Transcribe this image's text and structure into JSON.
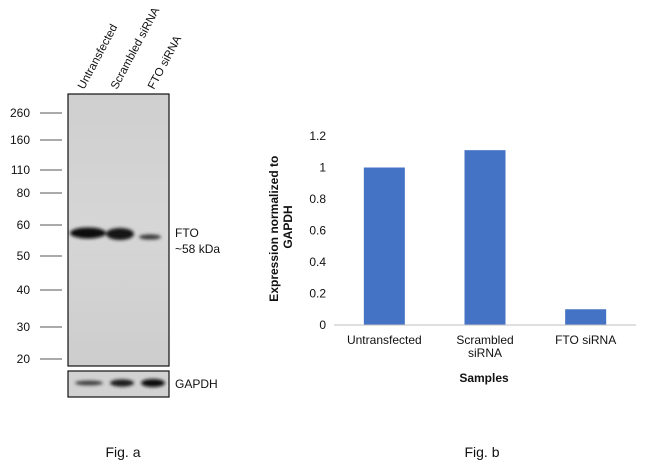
{
  "figure_a": {
    "lane_labels": [
      "Untransfected",
      "Scrambled siRNA",
      "FTO siRNA"
    ],
    "mw_markers": [
      "260",
      "160",
      "110",
      "80",
      "60",
      "50",
      "40",
      "30",
      "20"
    ],
    "band_label": "FTO",
    "band_size": "~58 kDa",
    "loading_label": "GAPDH",
    "caption": "Fig. a",
    "relative_band_intensity": [
      1.0,
      1.0,
      0.35
    ],
    "relative_gapdh_intensity": [
      0.55,
      0.8,
      0.95
    ]
  },
  "figure_b": {
    "caption": "Fig. b"
  },
  "chart_data": {
    "type": "bar",
    "categories": [
      "Untransfected",
      "Scrambled siRNA",
      "FTO siRNA"
    ],
    "values": [
      1.0,
      1.11,
      0.1
    ],
    "ylabel": "Expression normalized to GAPDH",
    "xlabel": "Samples",
    "ylim": [
      0,
      1.2
    ],
    "yticks": [
      "0",
      "0.2",
      "0.4",
      "0.6",
      "0.8",
      "1",
      "1.2"
    ],
    "bar_color": "#4472c4",
    "grid": false,
    "legend": "none"
  }
}
